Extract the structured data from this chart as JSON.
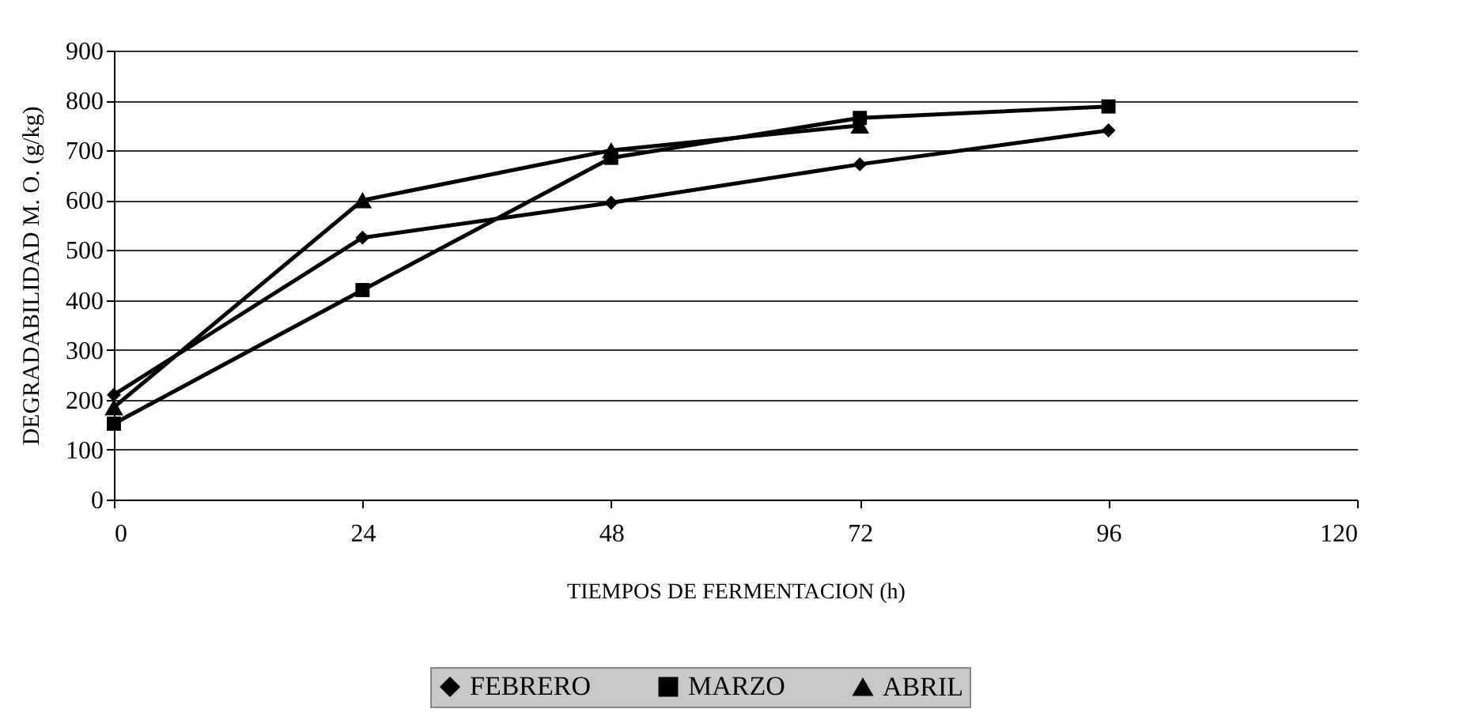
{
  "chart_data": {
    "type": "line",
    "xlabel": "TIEMPOS DE FERMENTACION (h)",
    "ylabel": "DEGRADABILIDAD M. O. (g/kg)",
    "x": [
      0,
      24,
      48,
      72,
      96
    ],
    "series": [
      {
        "name": "FEBRERO",
        "color": "#000000",
        "marker": "diamond",
        "values": [
          210,
          525,
          595,
          672,
          740
        ]
      },
      {
        "name": "MARZO",
        "color": "#000000",
        "marker": "square",
        "values": [
          152,
          420,
          685,
          765,
          788
        ]
      },
      {
        "name": "ABRIL",
        "color": "#000000",
        "marker": "triangle",
        "values": [
          185,
          600,
          700,
          750,
          null
        ]
      }
    ],
    "xlim": [
      0,
      120
    ],
    "xticks": [
      0,
      24,
      48,
      72,
      96,
      120
    ],
    "ylim": [
      0,
      900
    ],
    "yticks": [
      0,
      100,
      200,
      300,
      400,
      500,
      600,
      700,
      800,
      900
    ],
    "grid": "y",
    "legend": "bottom",
    "line_style": "solid"
  }
}
